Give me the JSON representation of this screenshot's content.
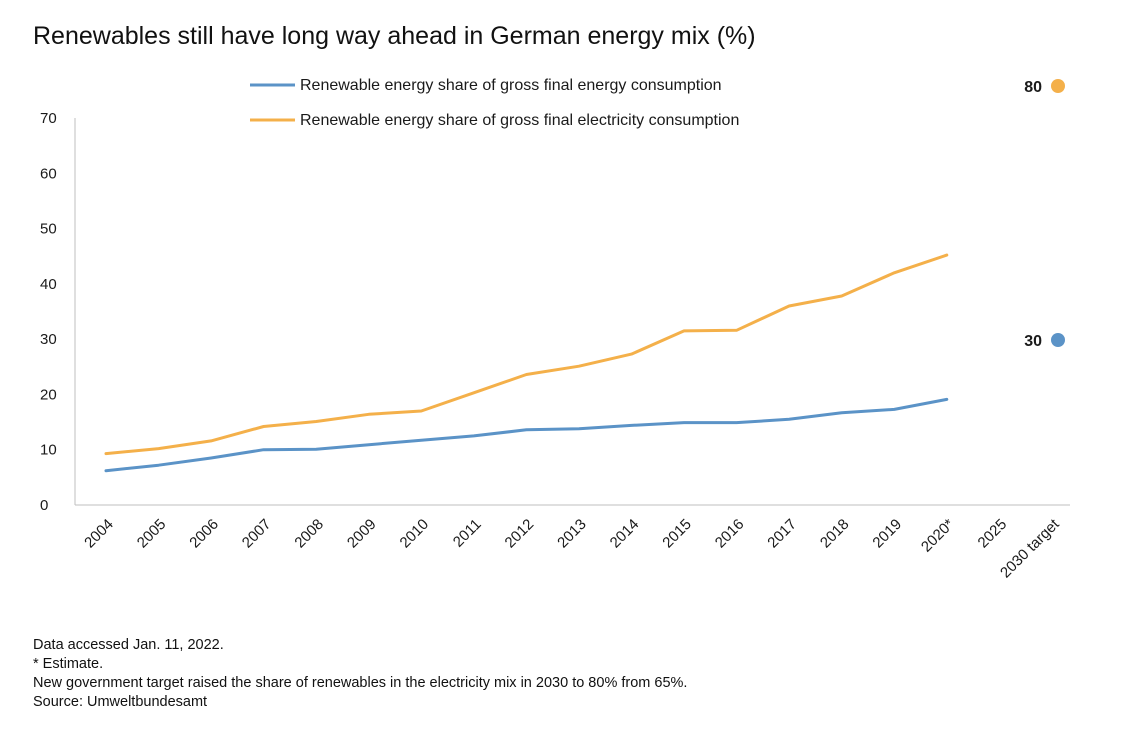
{
  "title": "Renewables still have long way ahead in German energy mix (%)",
  "chart_data": {
    "type": "line",
    "x": [
      "2004",
      "2005",
      "2006",
      "2007",
      "2008",
      "2009",
      "2010",
      "2011",
      "2012",
      "2013",
      "2014",
      "2015",
      "2016",
      "2017",
      "2018",
      "2019",
      "2020*",
      "2025",
      "2030 target"
    ],
    "series": [
      {
        "name": "Renewable energy share of gross final energy consumption",
        "color": "#5b93c7",
        "values": [
          6.2,
          7.2,
          8.5,
          10.0,
          10.1,
          10.9,
          11.7,
          12.5,
          13.6,
          13.8,
          14.4,
          14.9,
          14.9,
          15.5,
          16.7,
          17.3,
          19.1,
          null,
          null
        ]
      },
      {
        "name": "Renewable energy share of gross final electricity consumption",
        "color": "#f4b04a",
        "values": [
          9.3,
          10.2,
          11.6,
          14.2,
          15.1,
          16.4,
          17.0,
          20.3,
          23.6,
          25.1,
          27.3,
          31.5,
          31.6,
          36.0,
          37.8,
          42.0,
          45.2,
          null,
          null
        ]
      }
    ],
    "targets": [
      {
        "series": 1,
        "label": "80",
        "value": 80,
        "color": "#f4b04a"
      },
      {
        "series": 0,
        "label": "30",
        "value": 30,
        "color": "#5b93c7"
      }
    ],
    "ylim": [
      0,
      70
    ],
    "yticks": [
      0,
      10,
      20,
      30,
      40,
      50,
      60,
      70
    ],
    "xlabel": "",
    "ylabel": "",
    "grid": false,
    "legend_position": "top-center"
  },
  "footnotes": [
    "Data accessed Jan. 11, 2022.",
    "* Estimate.",
    "New government target raised the share of renewables in the electricity mix in 2030 to 80% from 65%.",
    "Source: Umweltbundesamt"
  ]
}
